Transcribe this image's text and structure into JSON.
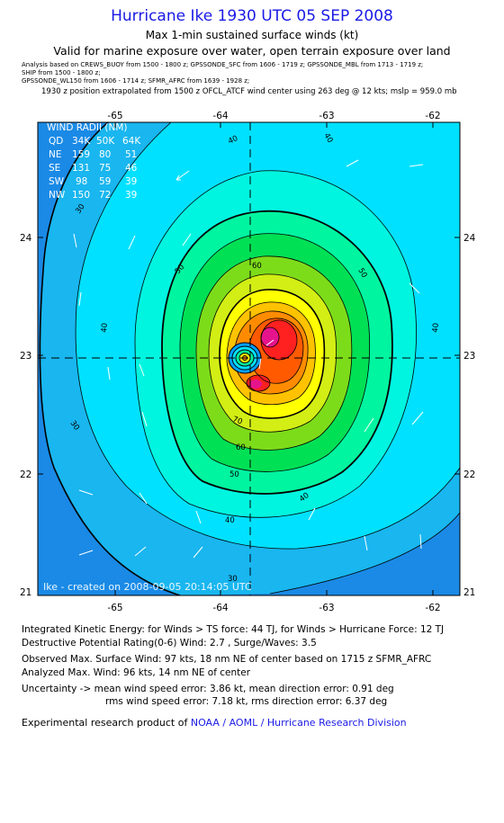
{
  "header": {
    "title": "Hurricane Ike 1930 UTC 05 SEP 2008",
    "subtitle1": "Max 1-min sustained surface winds (kt)",
    "subtitle2": "Valid for marine exposure over water, open terrain exposure over land",
    "analysis_lines": [
      "Analysis based on  CREWS_BUOY from 1500 - 1800 z;  GPSSONDE_SFC from 1606 - 1719 z;  GPSSONDE_MBL from 1713 - 1719 z;",
      "SHIP from 1500 - 1800 z;",
      "GPSSONDE_WL150 from 1606 - 1714 z;  SFMR_AFRC from 1639 - 1928 z;"
    ],
    "position_line": "1930 z position extrapolated from 1500 z OFCL_ATCF wind center using 263 deg @ 12 kts; mslp = 959.0 mb"
  },
  "map": {
    "lon_ticks": [
      "-65",
      "-64",
      "-63",
      "-62"
    ],
    "lat_ticks": [
      "24",
      "23",
      "22",
      "21"
    ],
    "contour_labels": [
      "30",
      "40",
      "50",
      "60",
      "70"
    ],
    "wind_radii": {
      "title": "WIND RADII (NM)",
      "header": [
        "QD",
        "34K",
        "50K",
        "64K"
      ],
      "rows": [
        [
          "NE",
          "159",
          "80",
          "51"
        ],
        [
          "SE",
          "131",
          "75",
          "46"
        ],
        [
          "SW",
          "98",
          "59",
          "39"
        ],
        [
          "NW",
          "150",
          "72",
          "39"
        ]
      ]
    },
    "created_text": "Ike - created on 2008-09-05 20:14:05 UTC",
    "colors": {
      "c20": "#1a8ae6",
      "c30": "#19b6ef",
      "c40": "#00e1ff",
      "c45": "#00f5e0",
      "c50": "#00f5a0",
      "c55": "#00e055",
      "c60": "#7ddc1a",
      "c65": "#d2ee14",
      "c70": "#ffff00",
      "c75": "#ffc200",
      "c80": "#ff8c00",
      "c85": "#ff5a00",
      "c90": "#ff2020",
      "c95": "#e6148c"
    }
  },
  "info": {
    "ike_line": "Integrated Kinetic Energy: for Winds > TS force: 44 TJ, for Winds > Hurricane Force: 12 TJ",
    "dp_line": "Destructive Potential Rating(0-6)  Wind: 2.7 , Surge/Waves: 3.5",
    "obs_line": "Observed Max. Surface Wind: 97 kts, 18 nm NE of center based on 1715 z SFMR_AFRC",
    "analyzed_line": "Analyzed Max. Wind: 96 kts, 14 nm NE of center",
    "uncert_line1": "Uncertainty -> mean wind speed error: 3.86 kt,   mean direction error: 0.91 deg",
    "uncert_line2": "rms wind speed error: 7.18 kt,   rms direction error: 6.37 deg",
    "footer_prefix": "Experimental research product of ",
    "footer_link": "NOAA / AOML / Hurricane Research Division"
  }
}
